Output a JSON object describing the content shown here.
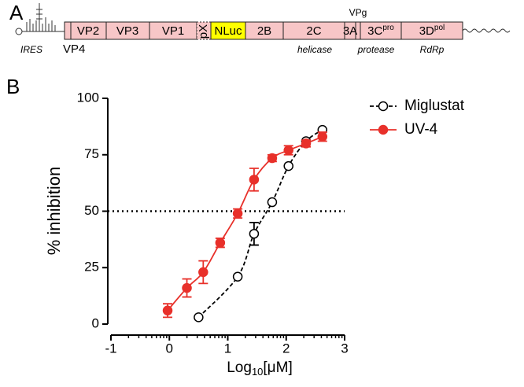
{
  "panel_labels": [
    "A",
    "B"
  ],
  "genome": {
    "segments": [
      "VP2",
      "VP3",
      "VP1",
      "pX",
      "NLuc",
      "2B",
      "2C",
      "3A"
    ],
    "protease_segment": {
      "text": "3C",
      "sup": "pro"
    },
    "polymerase_segment": {
      "text": "3D",
      "sup": "pol"
    },
    "above": "VPg",
    "below": [
      "IRES",
      "VP4",
      "helicase",
      "protease",
      "RdRp"
    ]
  },
  "chart_data": {
    "type": "scatter",
    "x_label": {
      "text": "Log",
      "sub": "10",
      "rest": "[μM]"
    },
    "y_label": "% inhibition",
    "xlim": [
      -1,
      3
    ],
    "xticks": [
      -1,
      0,
      1,
      2,
      3
    ],
    "ylim": [
      0,
      100
    ],
    "yticks": [
      0,
      25,
      50,
      75,
      100
    ],
    "reference_line": 50,
    "legend": "top-right",
    "series": [
      {
        "name": "Miglustat",
        "color": "#000000",
        "style": "dashed",
        "filled": false,
        "x": [
          0.5,
          1.17,
          1.45,
          1.76,
          2.04,
          2.34,
          2.62
        ],
        "values": [
          3,
          21,
          40,
          54,
          70,
          81,
          86
        ],
        "errors": [
          null,
          null,
          5,
          null,
          null,
          null,
          null
        ]
      },
      {
        "name": "UV-4",
        "color": "#e8302a",
        "style": "solid",
        "filled": true,
        "x": [
          -0.03,
          0.3,
          0.58,
          0.87,
          1.17,
          1.45,
          1.76,
          2.04,
          2.34,
          2.62
        ],
        "values": [
          6,
          16,
          23,
          36,
          49,
          64,
          73.5,
          77,
          80,
          83
        ],
        "errors": [
          3,
          4,
          5,
          2,
          2,
          5,
          1.5,
          2,
          1.5,
          2
        ]
      }
    ]
  }
}
